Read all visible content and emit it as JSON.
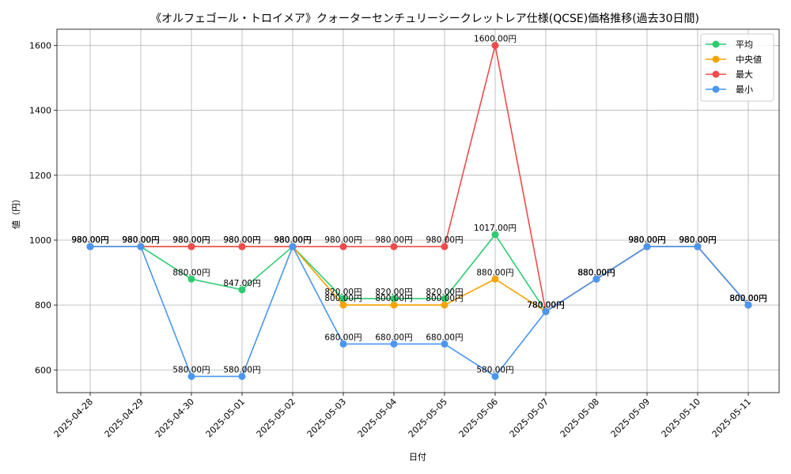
{
  "chart_data": {
    "type": "line",
    "title": "《オルフェゴール・トロイメア》クォーターセンチュリーシークレットレア仕様(QCSE)価格推移(過去30日間)",
    "xlabel": "日付",
    "ylabel": "値（円）",
    "ylim": [
      530,
      1650
    ],
    "yticks": [
      600,
      800,
      1000,
      1200,
      1400,
      1600
    ],
    "grid": true,
    "legend_position": "top-right",
    "value_suffix": "円",
    "categories": [
      "2025-04-28",
      "2025-04-29",
      "2025-04-30",
      "2025-05-01",
      "2025-05-02",
      "2025-05-03",
      "2025-05-04",
      "2025-05-05",
      "2025-05-06",
      "2025-05-07",
      "2025-05-08",
      "2025-05-09",
      "2025-05-10",
      "2025-05-11"
    ],
    "series": [
      {
        "name": "平均",
        "color": "#2ecc71",
        "values": [
          980,
          980,
          880,
          847,
          980,
          820,
          820,
          820,
          1017,
          780,
          880,
          980,
          980,
          800
        ]
      },
      {
        "name": "中央値",
        "color": "#f5a300",
        "values": [
          980,
          980,
          980,
          980,
          980,
          800,
          800,
          800,
          880,
          780,
          880,
          980,
          980,
          800
        ]
      },
      {
        "name": "最大",
        "color": "#ef4b4b",
        "values": [
          980,
          980,
          980,
          980,
          980,
          980,
          980,
          980,
          1600,
          780,
          880,
          980,
          980,
          800
        ]
      },
      {
        "name": "最小",
        "color": "#4a96f0",
        "values": [
          980,
          980,
          580,
          580,
          980,
          680,
          680,
          680,
          580,
          780,
          880,
          980,
          980,
          800
        ]
      }
    ]
  }
}
